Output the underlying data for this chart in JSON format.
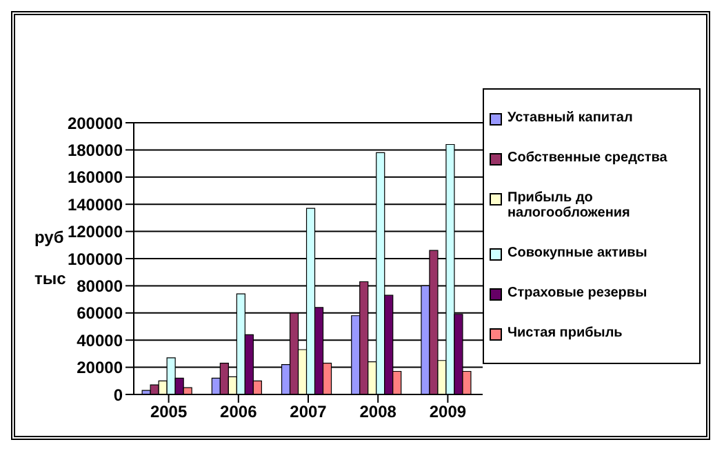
{
  "chart_data": {
    "type": "bar",
    "ylabel": "руб тыс",
    "categories": [
      "2005",
      "2006",
      "2007",
      "2008",
      "2009"
    ],
    "series": [
      {
        "name": "Уставный капитал",
        "color": "#9999ff",
        "values": [
          3000,
          12000,
          22000,
          58000,
          80000
        ]
      },
      {
        "name": "Собственные средства",
        "color": "#993366",
        "values": [
          7000,
          23000,
          60000,
          83000,
          106000
        ]
      },
      {
        "name": "Прибыль до налогообложения",
        "color": "#ffffcc",
        "values": [
          10000,
          13000,
          33000,
          24000,
          25000
        ]
      },
      {
        "name": "Совокупные активы",
        "color": "#ccffff",
        "values": [
          27000,
          74000,
          137000,
          178000,
          184000
        ]
      },
      {
        "name": "Страховые резервы",
        "color": "#660066",
        "values": [
          12000,
          44000,
          64000,
          73000,
          59000
        ]
      },
      {
        "name": "Чистая прибыль",
        "color": "#ff8080",
        "values": [
          5000,
          10000,
          23000,
          17000,
          17000
        ]
      }
    ],
    "ylim": [
      0,
      200000
    ],
    "yticks": [
      0,
      20000,
      40000,
      60000,
      80000,
      100000,
      120000,
      140000,
      160000,
      180000,
      200000
    ],
    "grid": "y",
    "legend": "right"
  }
}
